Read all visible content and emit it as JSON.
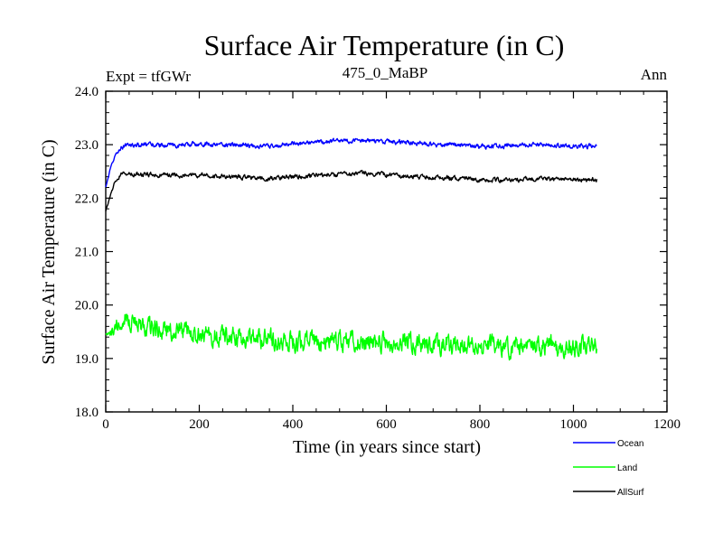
{
  "chart_data": {
    "type": "line",
    "title": "Surface Air Temperature (in C)",
    "subtitle_left": "Expt = tfGWr",
    "subtitle_center": "475_0_MaBP",
    "subtitle_right": "Ann",
    "xlabel": "Time (in years since start)",
    "ylabel": "Surface Air Temperature (in C)",
    "xlim": [
      0,
      1200
    ],
    "ylim": [
      18.0,
      24.0
    ],
    "xticks": [
      0,
      200,
      400,
      600,
      800,
      1000,
      1200
    ],
    "xtick_labels": [
      "0",
      "200",
      "400",
      "600",
      "800",
      "1000",
      "1200"
    ],
    "yticks": [
      18.0,
      19.0,
      20.0,
      21.0,
      22.0,
      23.0,
      24.0
    ],
    "ytick_labels": [
      "18.0",
      "19.0",
      "20.0",
      "21.0",
      "22.0",
      "23.0",
      "24.0"
    ],
    "grid": false,
    "legend_position": "bottom-right",
    "series": [
      {
        "name": "Ocean",
        "color": "#0000ff",
        "x": [
          0,
          10,
          20,
          30,
          40,
          50,
          70,
          100,
          150,
          200,
          250,
          300,
          350,
          400,
          450,
          500,
          550,
          600,
          650,
          700,
          750,
          800,
          850,
          900,
          950,
          1000,
          1050
        ],
        "y": [
          22.2,
          22.55,
          22.78,
          22.93,
          22.98,
          23.0,
          22.99,
          23.0,
          22.98,
          23.02,
          23.0,
          22.98,
          22.97,
          23.02,
          23.04,
          23.07,
          23.08,
          23.06,
          23.04,
          23.0,
          23.0,
          22.97,
          22.97,
          23.0,
          22.99,
          22.98,
          22.96
        ]
      },
      {
        "name": "Land",
        "color": "#00ff00",
        "x": [
          0,
          10,
          20,
          30,
          40,
          50,
          70,
          100,
          150,
          200,
          250,
          300,
          350,
          400,
          450,
          500,
          550,
          600,
          650,
          700,
          750,
          800,
          850,
          900,
          950,
          1000,
          1050
        ],
        "y": [
          19.45,
          19.5,
          19.58,
          19.66,
          19.72,
          19.7,
          19.63,
          19.58,
          19.5,
          19.46,
          19.42,
          19.38,
          19.35,
          19.33,
          19.34,
          19.32,
          19.3,
          19.31,
          19.3,
          19.28,
          19.25,
          19.22,
          19.2,
          19.22,
          19.24,
          19.23,
          19.25
        ]
      },
      {
        "name": "AllSurf",
        "color": "#000000",
        "x": [
          0,
          10,
          20,
          30,
          40,
          50,
          70,
          100,
          150,
          200,
          250,
          300,
          350,
          400,
          450,
          500,
          550,
          600,
          650,
          700,
          750,
          800,
          850,
          900,
          950,
          1000,
          1050
        ],
        "y": [
          21.75,
          22.05,
          22.3,
          22.42,
          22.45,
          22.46,
          22.44,
          22.44,
          22.42,
          22.43,
          22.41,
          22.38,
          22.36,
          22.4,
          22.42,
          22.45,
          22.46,
          22.44,
          22.41,
          22.38,
          22.37,
          22.34,
          22.33,
          22.36,
          22.36,
          22.35,
          22.35
        ]
      }
    ]
  }
}
